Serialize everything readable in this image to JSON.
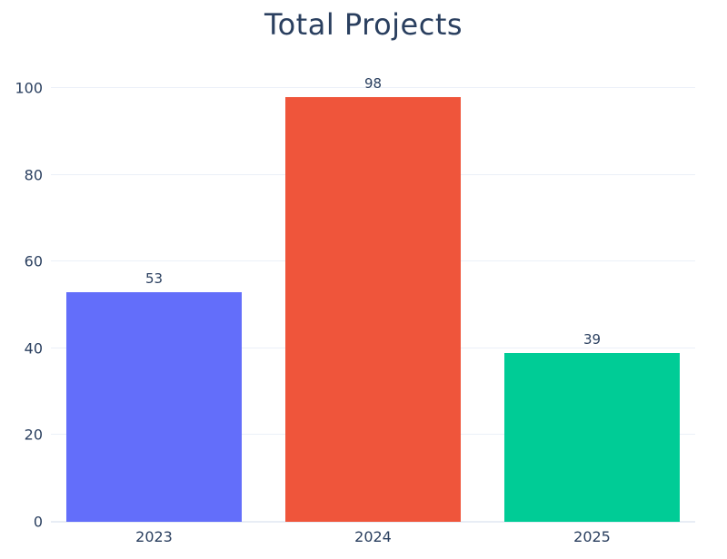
{
  "chart_data": {
    "type": "bar",
    "title": "Total Projects",
    "categories": [
      "2023",
      "2024",
      "2025"
    ],
    "values": [
      53,
      98,
      39
    ],
    "data_labels": [
      "53",
      "98",
      "39"
    ],
    "bar_colors": [
      "#636efa",
      "#ef553b",
      "#00cc96"
    ],
    "xlabel": "",
    "ylabel": "",
    "ylim": [
      0,
      100
    ],
    "yticks": [
      0,
      20,
      40,
      60,
      80,
      100
    ],
    "grid": true,
    "legend_position": "none"
  },
  "colors": {
    "title_text": "#2a3f5f",
    "axis_text": "#2a3f5f",
    "gridline": "#ebf0f8",
    "zeroline": "#e8edf5",
    "background": "#ffffff"
  }
}
